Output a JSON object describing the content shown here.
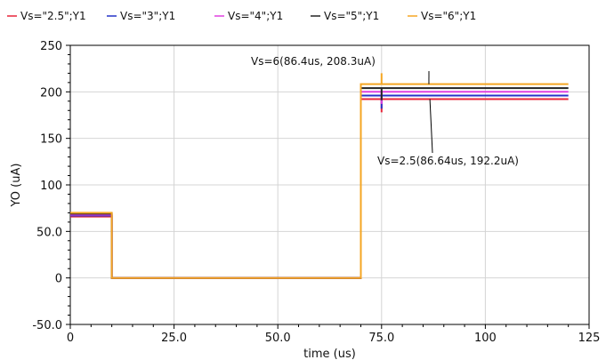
{
  "chart_data": {
    "type": "line",
    "xlabel": "time (us)",
    "ylabel": "YO (uA)",
    "xlim": [
      0,
      125
    ],
    "ylim": [
      -50,
      250
    ],
    "x_ticks": [
      0,
      25,
      50,
      75,
      100,
      125
    ],
    "x_tick_labels": [
      "0",
      "25.0",
      "50.0",
      "75.0",
      "100",
      "125"
    ],
    "y_ticks": [
      -50,
      0,
      50,
      100,
      150,
      200,
      250
    ],
    "y_tick_labels": [
      "-50.0",
      "0",
      "50.0",
      "100",
      "150",
      "200",
      "250"
    ],
    "grid": true,
    "legend_position": "top",
    "series": [
      {
        "name": "Vs=\"2.5\";Y1",
        "color": "#e8253a",
        "x": [
          0,
          10,
          10,
          70,
          70,
          75,
          75,
          75,
          120
        ],
        "y": [
          66,
          66,
          0,
          0,
          192.2,
          192.2,
          178,
          192.2,
          192.2
        ]
      },
      {
        "name": "Vs=\"3\";Y1",
        "color": "#2633c8",
        "x": [
          0,
          10,
          10,
          70,
          70,
          75,
          75,
          75,
          120
        ],
        "y": [
          67,
          67,
          0,
          0,
          196,
          196,
          182,
          196,
          196
        ]
      },
      {
        "name": "Vs=\"4\";Y1",
        "color": "#e040e0",
        "x": [
          0,
          10,
          10,
          70,
          70,
          75,
          75,
          75,
          120
        ],
        "y": [
          68,
          68,
          0,
          0,
          200,
          200,
          187,
          200,
          200
        ]
      },
      {
        "name": "Vs=\"5\";Y1",
        "color": "#222222",
        "x": [
          0,
          10,
          10,
          70,
          70,
          75,
          75,
          75,
          120
        ],
        "y": [
          69,
          69,
          0,
          0,
          204,
          204,
          191,
          204,
          204
        ]
      },
      {
        "name": "Vs=\"6\";Y1",
        "color": "#f5a623",
        "x": [
          0,
          10,
          10,
          70,
          70,
          75,
          75,
          75,
          120
        ],
        "y": [
          70,
          70,
          0,
          0,
          208.3,
          208.3,
          220,
          208.3,
          208.3
        ]
      }
    ],
    "annotations": [
      {
        "text": "Vs=6(86.4us, 208.3uA)",
        "x": 86.4,
        "y": 208.3
      },
      {
        "text": "Vs=2.5(86.64us, 192.2uA)",
        "x": 86.64,
        "y": 192.2
      }
    ]
  }
}
